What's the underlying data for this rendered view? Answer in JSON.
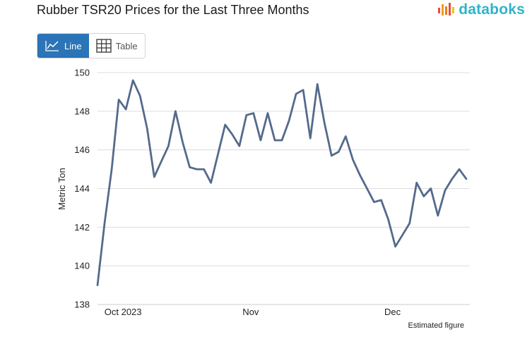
{
  "header": {
    "title": "Rubber TSR20 Prices for the Last Three Months",
    "brand": "databoks"
  },
  "toggle": {
    "line_label": "Line",
    "table_label": "Table",
    "active": "line"
  },
  "colors": {
    "line": "#546a8c",
    "brand": "#2fb4c7",
    "active_button": "#2b74b7",
    "grid": "#dcdcdc"
  },
  "chart_data": {
    "type": "line",
    "title": "Rubber TSR20 Prices for the Last Three Months",
    "xlabel": "",
    "ylabel": "Metric Ton",
    "ylim": [
      138,
      150
    ],
    "yticks": [
      138,
      140,
      142,
      144,
      146,
      148,
      150
    ],
    "xtick_labels": [
      {
        "label": "Oct 2023",
        "index": 4
      },
      {
        "label": "Nov",
        "index": 22
      },
      {
        "label": "Dec",
        "index": 42
      }
    ],
    "note": "Estimated figure",
    "series": [
      {
        "name": "Rubber TSR20",
        "values": [
          139.0,
          142.2,
          145.0,
          148.6,
          148.1,
          149.6,
          148.8,
          147.1,
          144.6,
          145.4,
          146.2,
          148.0,
          146.4,
          145.1,
          145.0,
          145.0,
          144.3,
          145.8,
          147.3,
          146.8,
          146.2,
          147.8,
          147.9,
          146.5,
          147.9,
          146.5,
          146.5,
          147.5,
          148.9,
          149.1,
          146.6,
          149.4,
          147.4,
          145.7,
          145.9,
          146.7,
          145.5,
          144.7,
          144.0,
          143.3,
          143.4,
          142.4,
          141.0,
          141.6,
          142.2,
          144.3,
          143.6,
          144.0,
          142.6,
          143.9,
          144.5,
          145.0,
          144.5
        ]
      }
    ]
  }
}
